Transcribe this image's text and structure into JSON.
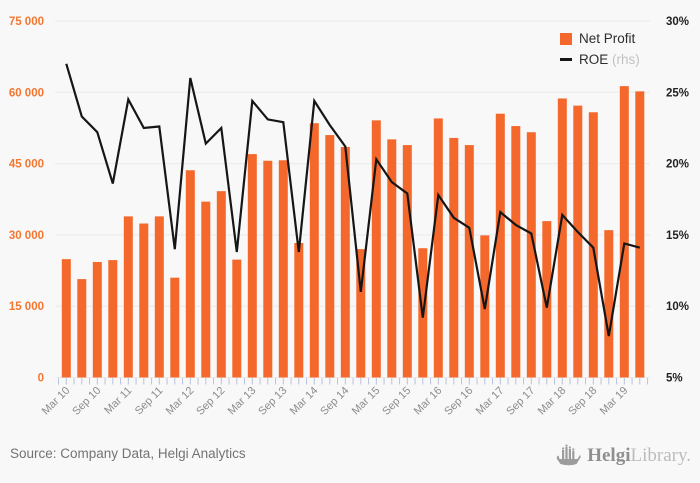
{
  "chart_data": {
    "type": "bar",
    "subtype": "bar+line combo, quarterly",
    "title": "",
    "categories": [
      "Mar 10",
      "Jun 10",
      "Sep 10",
      "Dec 10",
      "Mar 11",
      "Jun 11",
      "Sep 11",
      "Dec 11",
      "Mar 12",
      "Jun 12",
      "Sep 12",
      "Dec 12",
      "Mar 13",
      "Jun 13",
      "Sep 13",
      "Dec 13",
      "Mar 14",
      "Jun 14",
      "Sep 14",
      "Dec 14",
      "Mar 15",
      "Jun 15",
      "Sep 15",
      "Dec 15",
      "Mar 16",
      "Jun 16",
      "Sep 16",
      "Dec 16",
      "Mar 17",
      "Jun 17",
      "Sep 17",
      "Dec 17",
      "Mar 18",
      "Jun 18",
      "Sep 18",
      "Dec 18",
      "Mar 19",
      "Jun 19"
    ],
    "x_axis_visible_labels": [
      "Mar 10",
      "Sep 10",
      "Mar 11",
      "Sep 11",
      "Mar 12",
      "Sep 12",
      "Mar 13",
      "Sep 13",
      "Mar 14",
      "Sep 14",
      "Mar 15",
      "Sep 15",
      "Mar 16",
      "Sep 16",
      "Mar 17",
      "Sep 17",
      "Mar 18",
      "Sep 18",
      "Mar 19"
    ],
    "series": [
      {
        "name": "Net Profit",
        "type": "bar",
        "axis": "left",
        "color": "#f4682c",
        "values": [
          24900,
          20700,
          24300,
          24700,
          33900,
          32400,
          33900,
          21000,
          43600,
          37000,
          39200,
          24800,
          47000,
          45600,
          45700,
          28300,
          53500,
          51000,
          48500,
          27000,
          54100,
          50100,
          48900,
          27200,
          54500,
          50400,
          48900,
          29900,
          55500,
          52900,
          51600,
          32900,
          58700,
          57200,
          55800,
          31000,
          61300,
          60200
        ]
      },
      {
        "name": "ROE",
        "axis_note": "(rhs)",
        "type": "line",
        "axis": "right",
        "color": "#161616",
        "values": [
          27.0,
          23.3,
          22.2,
          18.6,
          24.5,
          22.5,
          22.6,
          14.0,
          26.0,
          21.4,
          22.5,
          13.8,
          24.4,
          23.1,
          22.9,
          13.8,
          24.4,
          22.7,
          21.2,
          11.0,
          20.3,
          18.7,
          17.9,
          9.2,
          17.8,
          16.2,
          15.5,
          9.8,
          16.6,
          15.7,
          15.1,
          9.9,
          16.4,
          15.2,
          14.1,
          7.9,
          14.4,
          14.1
        ]
      }
    ],
    "y_left": {
      "min": 0,
      "max": 75000,
      "tick_labels": [
        "75 000",
        "60 000",
        "45 000",
        "30 000",
        "15 000",
        "0"
      ]
    },
    "y_right": {
      "min": 5,
      "max": 30,
      "tick_labels": [
        "30%",
        "25%",
        "20%",
        "15%",
        "10%",
        "5%"
      ]
    },
    "grid": true,
    "legend_position": "top-right"
  },
  "legend": {
    "net_profit_label": "Net Profit",
    "roe_label": "ROE",
    "roe_note": "(rhs)"
  },
  "footer": {
    "source": "Source: Company Data, Helgi Analytics",
    "logo_bold": "Helgi",
    "logo_light": "Library."
  },
  "colors": {
    "background": "#f8f8f8",
    "bar": "#f4682c",
    "line": "#161616",
    "grid": "#eaeaea",
    "left_axis_text": "#f5762f",
    "right_axis_text": "#222222",
    "x_axis_text": "#8c8c8c",
    "tick_mark": "#b8c2e0"
  }
}
